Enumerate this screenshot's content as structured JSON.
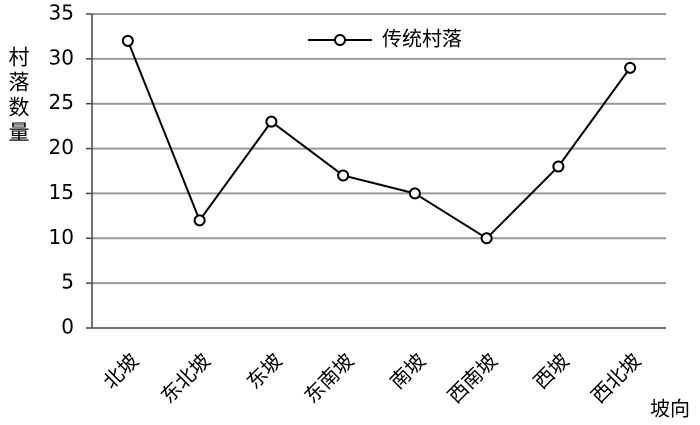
{
  "chart_data": {
    "type": "line",
    "y_label": "村落数量",
    "x_label": "坡向",
    "categories": [
      "北坡",
      "东北坡",
      "东坡",
      "东南坡",
      "南坡",
      "西南坡",
      "西坡",
      "西北坡"
    ],
    "series": [
      {
        "name": "传统村落",
        "color": "#000000",
        "values": [
          32,
          12,
          23,
          17,
          15,
          10,
          18,
          29
        ]
      }
    ],
    "ylim": [
      0,
      35
    ],
    "yticks": [
      0,
      5,
      10,
      15,
      20,
      25,
      30,
      35
    ],
    "grid": true,
    "legend": "top"
  }
}
